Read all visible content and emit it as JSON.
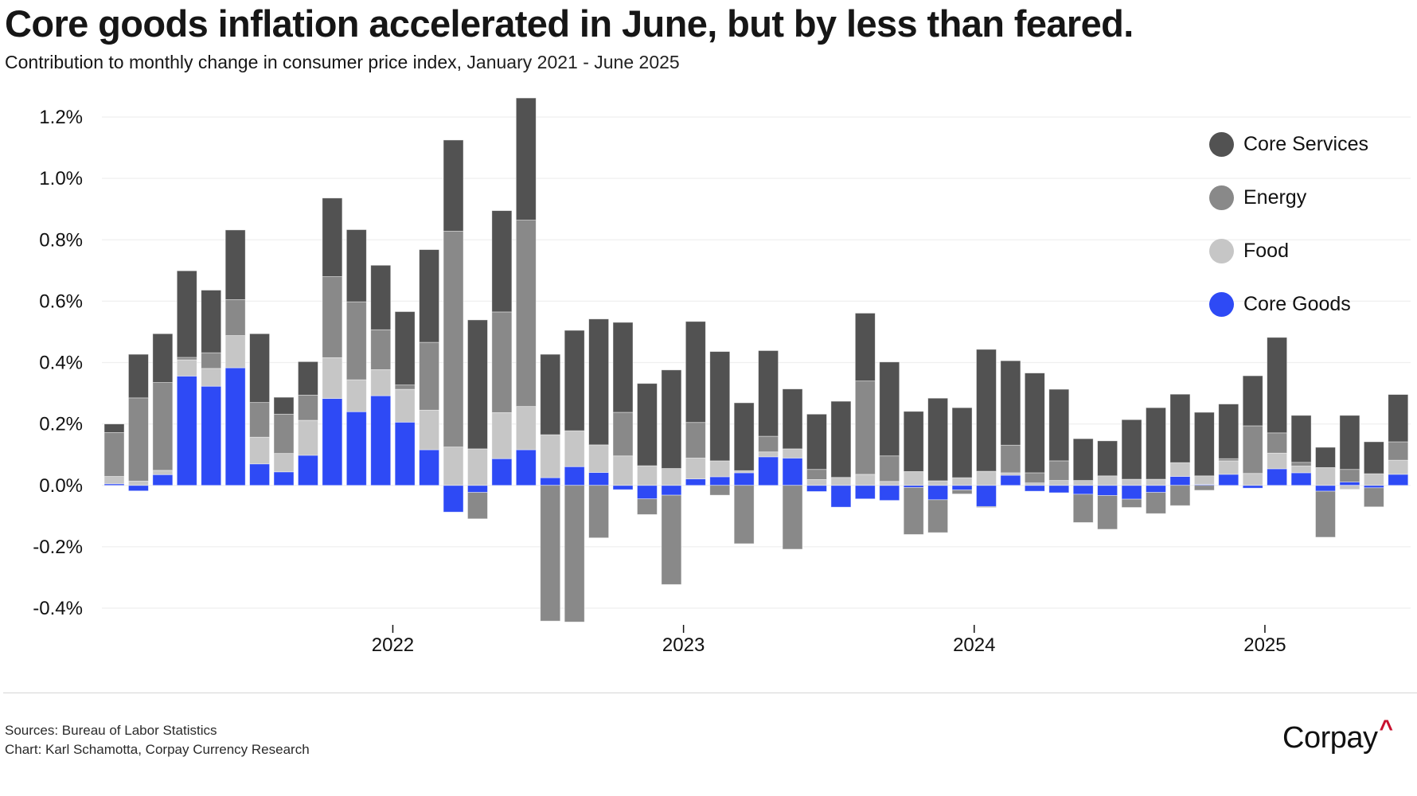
{
  "header": {
    "title": "Core goods inflation accelerated in June, but by less than feared.",
    "subtitle_main": "Contribution to monthly change in consumer price index,",
    "subtitle_range": " January 2021 - June 2025"
  },
  "colors": {
    "core_services": "#525252",
    "energy": "#898989",
    "food": "#c6c6c6",
    "core_goods": "#2e4af5"
  },
  "legend": [
    {
      "key": "core_services",
      "label": "Core Services",
      "color": "#525252"
    },
    {
      "key": "energy",
      "label": "Energy",
      "color": "#898989"
    },
    {
      "key": "food",
      "label": "Food",
      "color": "#c6c6c6"
    },
    {
      "key": "core_goods",
      "label": "Core Goods",
      "color": "#2e4af5"
    }
  ],
  "footer": {
    "sources": "Sources: Bureau of Labor Statistics",
    "credit": "Chart: Karl Schamotta, Corpay Currency Research"
  },
  "logo": {
    "text": "Corpay",
    "mark": "^"
  },
  "chart_data": {
    "type": "bar",
    "stacked": true,
    "title": "Core goods inflation accelerated in June, but by less than feared.",
    "subtitle": "Contribution to monthly change in consumer price index, January 2021 - June 2025",
    "xlabel": "",
    "ylabel": "",
    "ylim": [
      -0.4,
      1.2
    ],
    "yticks": [
      1.2,
      1.0,
      0.8,
      0.6,
      0.4,
      0.2,
      0.0,
      -0.2,
      -0.4
    ],
    "ytick_labels": [
      "1.2%",
      "1.0%",
      "0.8%",
      "0.6%",
      "0.4%",
      "0.2%",
      "0.0%",
      "-0.2%",
      "-0.4%"
    ],
    "xticks": [
      {
        "label": "2022",
        "index": 12
      },
      {
        "label": "2023",
        "index": 24
      },
      {
        "label": "2024",
        "index": 36
      },
      {
        "label": "2025",
        "index": 48
      }
    ],
    "grid": true,
    "legend_position": "top-right",
    "units": "percentage points",
    "categories": [
      "2021-01",
      "2021-02",
      "2021-03",
      "2021-04",
      "2021-05",
      "2021-06",
      "2021-07",
      "2021-08",
      "2021-09",
      "2021-10",
      "2021-11",
      "2021-12",
      "2022-01",
      "2022-02",
      "2022-03",
      "2022-04",
      "2022-05",
      "2022-06",
      "2022-07",
      "2022-08",
      "2022-09",
      "2022-10",
      "2022-11",
      "2022-12",
      "2023-01",
      "2023-02",
      "2023-03",
      "2023-04",
      "2023-05",
      "2023-06",
      "2023-07",
      "2023-08",
      "2023-09",
      "2023-10",
      "2023-11",
      "2023-12",
      "2024-01",
      "2024-02",
      "2024-03",
      "2024-04",
      "2024-05",
      "2024-06",
      "2024-07",
      "2024-08",
      "2024-09",
      "2024-10",
      "2024-11",
      "2024-12",
      "2025-01",
      "2025-02",
      "2025-03",
      "2025-04",
      "2025-05",
      "2025-06"
    ],
    "series": [
      {
        "name": "Core Goods",
        "key": "core_goods",
        "values": [
          0.005,
          -0.018,
          0.035,
          0.356,
          0.323,
          0.383,
          0.07,
          0.044,
          0.098,
          0.283,
          0.24,
          0.292,
          0.206,
          0.116,
          -0.087,
          -0.023,
          0.087,
          0.116,
          0.025,
          0.061,
          0.042,
          -0.014,
          -0.044,
          -0.032,
          0.021,
          0.028,
          0.041,
          0.093,
          0.089,
          -0.02,
          -0.071,
          -0.044,
          -0.049,
          -0.007,
          -0.047,
          -0.015,
          -0.069,
          0.033,
          -0.019,
          -0.024,
          -0.029,
          -0.033,
          -0.045,
          -0.023,
          0.029,
          0.003,
          0.036,
          -0.009,
          0.054,
          0.041,
          -0.019,
          0.011,
          -0.008,
          0.036
        ]
      },
      {
        "name": "Food",
        "key": "food",
        "values": [
          0.024,
          0.014,
          0.014,
          0.053,
          0.058,
          0.105,
          0.087,
          0.06,
          0.114,
          0.133,
          0.104,
          0.085,
          0.107,
          0.129,
          0.125,
          0.119,
          0.15,
          0.141,
          0.14,
          0.117,
          0.09,
          0.096,
          0.064,
          0.055,
          0.068,
          0.052,
          0.007,
          0.016,
          0.03,
          0.019,
          0.026,
          0.036,
          0.013,
          0.045,
          0.015,
          0.025,
          0.046,
          0.008,
          0.008,
          0.016,
          0.016,
          0.031,
          0.02,
          0.02,
          0.045,
          0.028,
          0.044,
          0.039,
          0.051,
          0.022,
          0.058,
          -0.013,
          0.038,
          0.046
        ]
      },
      {
        "name": "Energy",
        "key": "energy",
        "values": [
          0.143,
          0.271,
          0.286,
          0.008,
          0.051,
          0.117,
          0.113,
          0.128,
          0.082,
          0.264,
          0.254,
          0.13,
          0.014,
          0.221,
          0.703,
          -0.086,
          0.328,
          0.607,
          -0.442,
          -0.445,
          -0.171,
          0.142,
          -0.051,
          -0.291,
          0.116,
          -0.032,
          -0.19,
          0.051,
          -0.208,
          0.033,
          0.0,
          0.304,
          0.083,
          -0.153,
          -0.107,
          -0.013,
          -0.003,
          0.09,
          0.033,
          0.064,
          -0.092,
          -0.11,
          -0.027,
          -0.069,
          -0.066,
          -0.016,
          0.007,
          0.155,
          0.066,
          0.012,
          -0.15,
          0.041,
          -0.062,
          0.06
        ]
      },
      {
        "name": "Core Services",
        "key": "core_services",
        "values": [
          0.028,
          0.142,
          0.159,
          0.282,
          0.204,
          0.227,
          0.224,
          0.055,
          0.109,
          0.256,
          0.235,
          0.21,
          0.239,
          0.302,
          0.297,
          0.42,
          0.33,
          0.398,
          0.262,
          0.327,
          0.41,
          0.293,
          0.268,
          0.321,
          0.329,
          0.356,
          0.221,
          0.279,
          0.195,
          0.18,
          0.248,
          0.221,
          0.306,
          0.196,
          0.269,
          0.228,
          0.397,
          0.275,
          0.325,
          0.233,
          0.136,
          0.114,
          0.194,
          0.233,
          0.223,
          0.207,
          0.178,
          0.163,
          0.311,
          0.153,
          0.066,
          0.176,
          0.104,
          0.154
        ]
      }
    ]
  }
}
